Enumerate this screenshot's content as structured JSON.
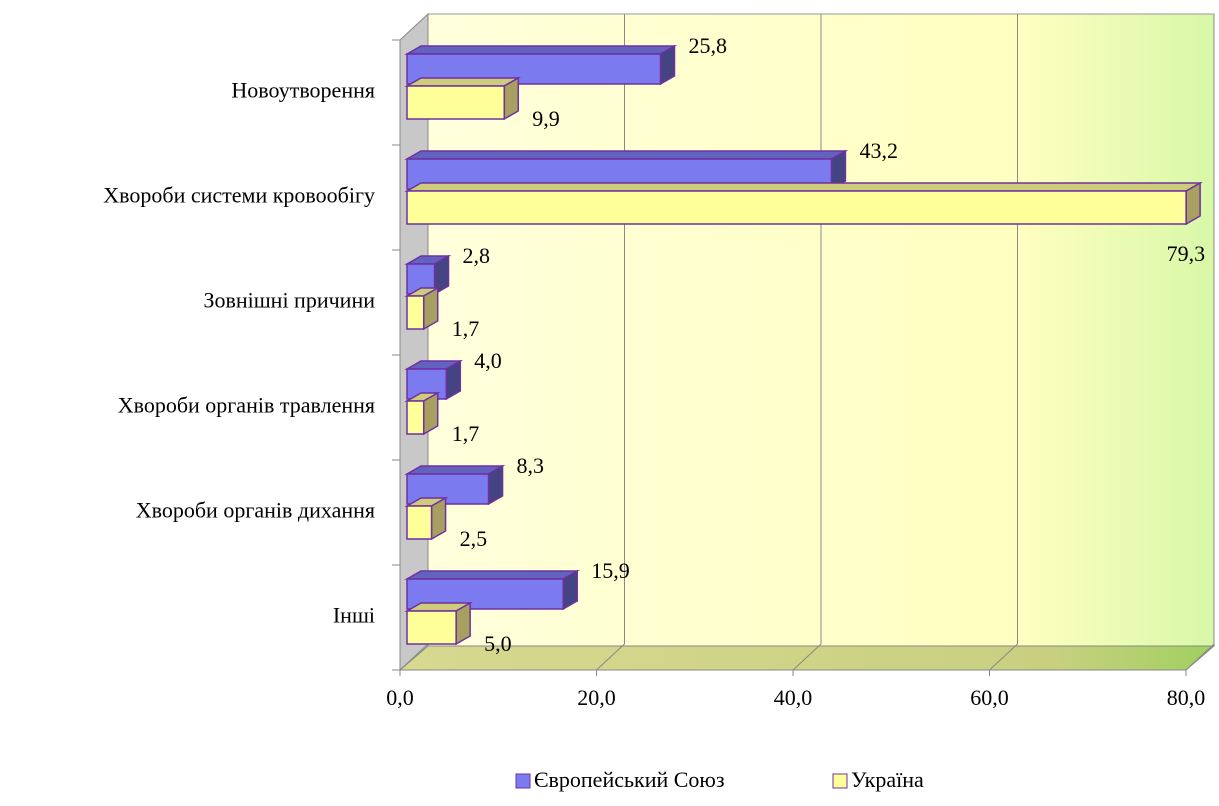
{
  "chart_data": {
    "type": "bar3d_horizontal",
    "categories": [
      "Новоутворення",
      "Хвороби системи кровообігу",
      "Зовнішні причини",
      "Хвороби органів травлення",
      "Хвороби органів дихання",
      "Інші"
    ],
    "series": [
      {
        "name": "Європейський Союз",
        "color": "#7b7bef",
        "values": [
          25.8,
          43.2,
          2.8,
          4.0,
          8.3,
          15.9
        ],
        "value_labels": [
          "25,8",
          "43,2",
          "2,8",
          "4,0",
          "8,3",
          "15,9"
        ]
      },
      {
        "name": "Україна",
        "color": "#ffff99",
        "values": [
          9.9,
          79.3,
          1.7,
          1.7,
          2.5,
          5.0
        ],
        "value_labels": [
          "9,9",
          "79,3",
          "1,7",
          "1,7",
          "2,5",
          "5,0"
        ]
      }
    ],
    "xlim": [
      0,
      80
    ],
    "xticks": [
      {
        "value": 0,
        "label": "0,0"
      },
      {
        "value": 20,
        "label": "20,0"
      },
      {
        "value": 40,
        "label": "40,0"
      },
      {
        "value": 60,
        "label": "60,0"
      },
      {
        "value": 80,
        "label": "80,0"
      }
    ],
    "grid": true,
    "legend": "bottom"
  }
}
